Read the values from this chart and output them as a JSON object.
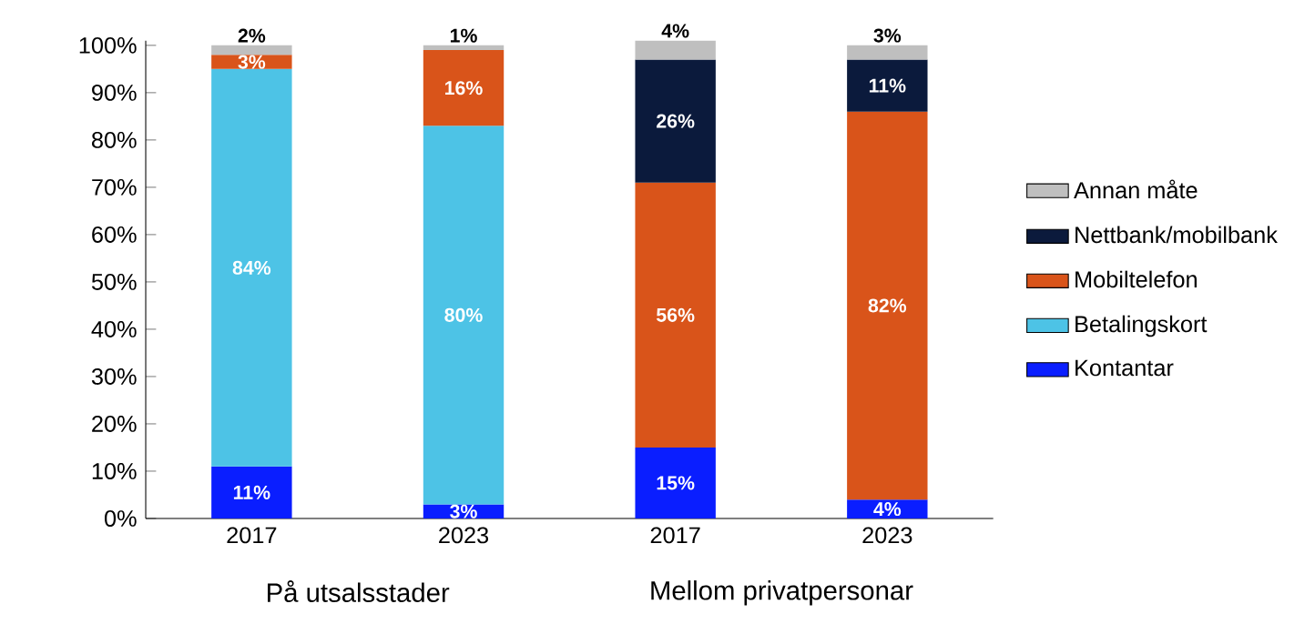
{
  "chart_data": {
    "type": "bar",
    "stacked": true,
    "categories": [
      "2017",
      "2023",
      "2017",
      "2023"
    ],
    "series": [
      {
        "name": "Kontantar",
        "color": "#0a1eff",
        "values": [
          11,
          3,
          15,
          4
        ],
        "value_labels": [
          "11%",
          "3%",
          "15%",
          "4%"
        ]
      },
      {
        "name": "Betalingskort",
        "color": "#4dc3e6",
        "values": [
          84,
          80,
          null,
          null
        ],
        "value_labels": [
          "84%",
          "80%",
          null,
          null
        ]
      },
      {
        "name": "Mobiltelefon",
        "color": "#d9541a",
        "values": [
          3,
          16,
          56,
          82
        ],
        "value_labels": [
          "3%",
          "16%",
          "56%",
          "82%"
        ]
      },
      {
        "name": "Nettbank/mobilbank",
        "color": "#0b1a3c",
        "values": [
          null,
          null,
          26,
          11
        ],
        "value_labels": [
          null,
          null,
          "26%",
          "11%"
        ]
      },
      {
        "name": "Annan måte",
        "color": "#bfbfbf",
        "values": [
          2,
          1,
          4,
          3
        ],
        "value_labels": [
          "2%",
          "1%",
          "4%",
          "3%"
        ]
      }
    ],
    "ylim": [
      0,
      101
    ],
    "yticks": [
      {
        "value": 0,
        "label": "0%"
      },
      {
        "value": 10,
        "label": "10%"
      },
      {
        "value": 20,
        "label": "20%"
      },
      {
        "value": 30,
        "label": "30%"
      },
      {
        "value": 40,
        "label": "40%"
      },
      {
        "value": 50,
        "label": "50%"
      },
      {
        "value": 60,
        "label": "60%"
      },
      {
        "value": 70,
        "label": "70%"
      },
      {
        "value": 80,
        "label": "80%"
      },
      {
        "value": 90,
        "label": "90%"
      },
      {
        "value": 100,
        "label": "100%"
      }
    ],
    "annotations": [
      "På utsalsstader",
      "Mellom privatpersonar"
    ],
    "grid": false,
    "legend": "right"
  }
}
